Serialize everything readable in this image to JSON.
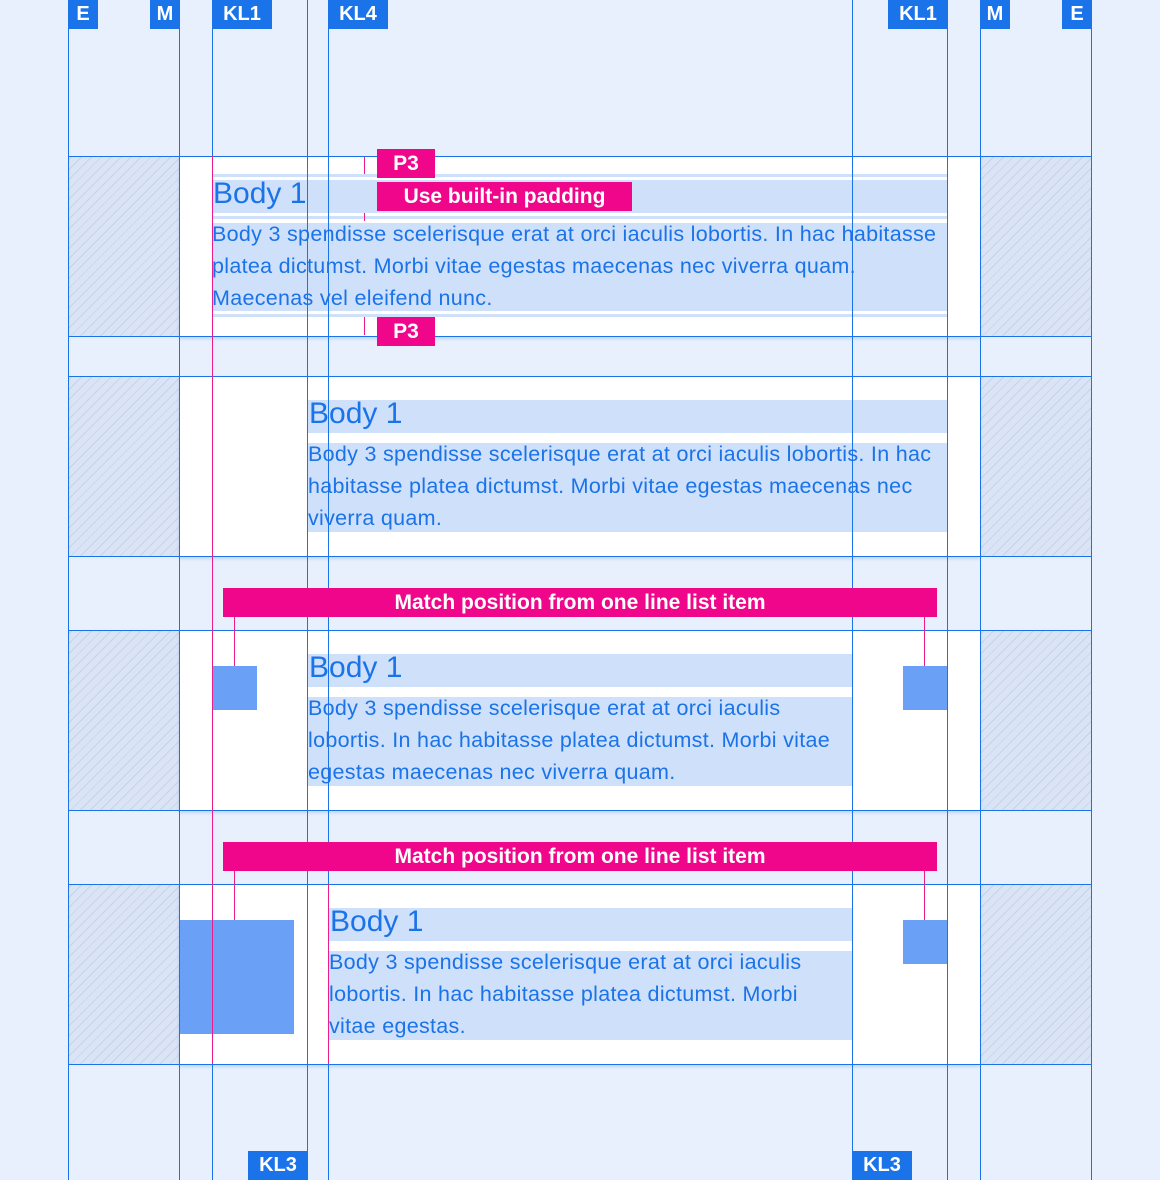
{
  "column_labels_top": [
    "E",
    "M",
    "KL1",
    "KL4",
    "KL1",
    "M",
    "E"
  ],
  "column_labels_bottom": [
    "KL3",
    "KL3"
  ],
  "rows": [
    {
      "title": "Body 1",
      "body": "Body 3 spendisse scelerisque erat at orci iaculis lobortis. In hac habitasse platea dictumst. Morbi vitae egestas maecenas nec viverra quam. Maecenas vel eleifend nunc."
    },
    {
      "title": "Body 1",
      "body": "Body 3 spendisse scelerisque erat at orci iaculis lobortis. In hac habitasse platea dictumst. Morbi vitae egestas maecenas nec viverra quam."
    },
    {
      "title": "Body 1",
      "body": "Body 3 spendisse scelerisque erat at orci iaculis lobortis. In hac habitasse platea dictumst. Morbi vitae egestas maecenas nec viverra quam."
    },
    {
      "title": "Body 1",
      "body": "Body 3 spendisse scelerisque erat at orci iaculis lobortis. In hac habitasse platea dictumst. Morbi vitae egestas."
    }
  ],
  "annotations": {
    "p3": "P3",
    "padding": "Use built-in padding",
    "match": "Match position from one line list item"
  },
  "colors": {
    "grid": "#1a73e8",
    "annotation": "#f0068a",
    "highlight": "#cfe0fa",
    "placeholder": "#6aa0f5"
  }
}
